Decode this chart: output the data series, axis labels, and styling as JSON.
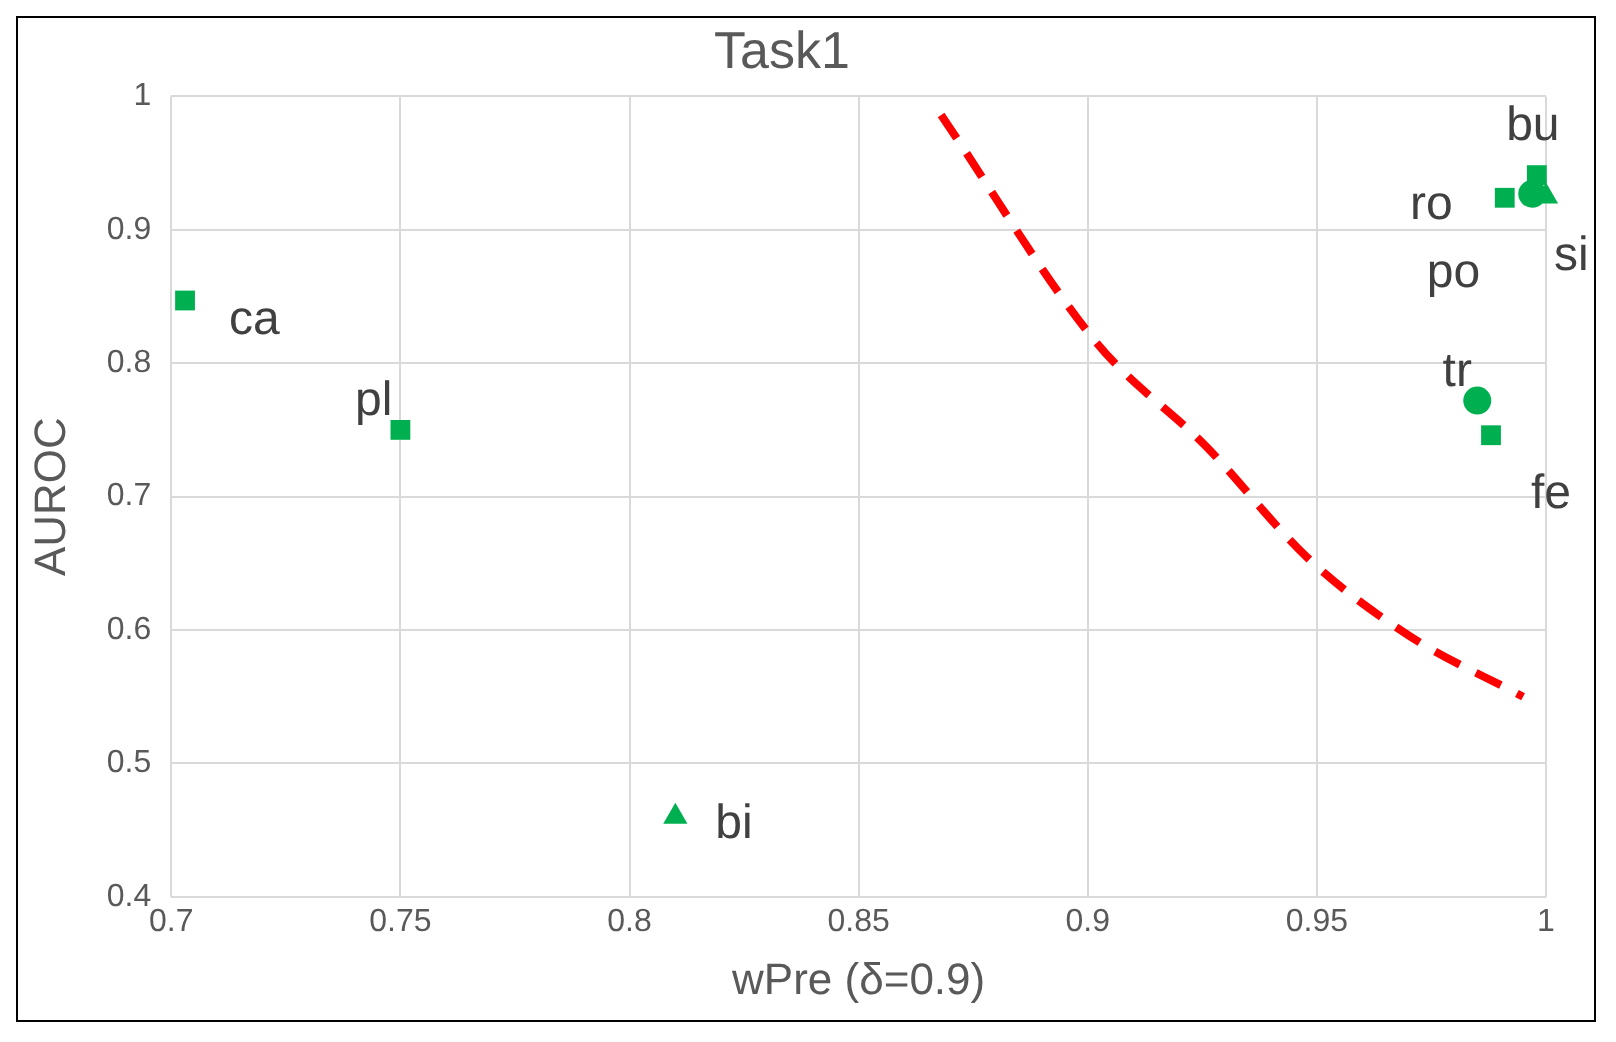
{
  "chart_data": {
    "type": "scatter",
    "title": "Task1",
    "xlabel": "wPre (δ=0.9)",
    "ylabel": "AUROC",
    "xlim": [
      0.7,
      1
    ],
    "xticks": [
      0.7,
      0.75,
      0.8,
      0.85,
      0.9,
      0.95,
      1
    ],
    "ylim": [
      0.4,
      1
    ],
    "yticks": [
      0.4,
      0.5,
      0.6,
      0.7,
      0.8,
      0.9,
      1
    ],
    "grid": true,
    "legend": false,
    "series": [
      {
        "marker": "triangle",
        "color": "#00b050",
        "x": [
          0.81,
          1.0
        ],
        "values": [
          0.46,
          0.925
        ]
      },
      {
        "marker": "square",
        "color": "#00b050",
        "x": [
          0.703,
          0.75,
          0.991,
          0.998,
          0.988
        ],
        "values": [
          0.847,
          0.75,
          0.924,
          0.941,
          0.746
        ]
      },
      {
        "marker": "circle",
        "color": "#00b050",
        "x": [
          0.985,
          0.997
        ],
        "values": [
          0.772,
          0.927
        ]
      },
      {
        "type": "line",
        "marker": "none",
        "line_style": "dashed",
        "color": "#ff0000",
        "x": [
          0.868,
          0.902,
          0.926,
          0.948,
          0.97,
          0.995
        ],
        "values": [
          0.986,
          0.815,
          0.737,
          0.654,
          0.596,
          0.55
        ]
      }
    ],
    "annotations": [
      {
        "text": "ca",
        "x": 0.703,
        "y": 0.847
      },
      {
        "text": "pl",
        "x": 0.75,
        "y": 0.75
      },
      {
        "text": "bi",
        "x": 0.81,
        "y": 0.46
      },
      {
        "text": "ro",
        "x": 0.991,
        "y": 0.924
      },
      {
        "text": "bu",
        "x": 0.998,
        "y": 0.941
      },
      {
        "text": "si",
        "x": 1.0,
        "y": 0.925
      },
      {
        "text": "po",
        "x": 0.997,
        "y": 0.927
      },
      {
        "text": "tr",
        "x": 0.985,
        "y": 0.772
      },
      {
        "text": "fe",
        "x": 0.988,
        "y": 0.746
      }
    ]
  }
}
